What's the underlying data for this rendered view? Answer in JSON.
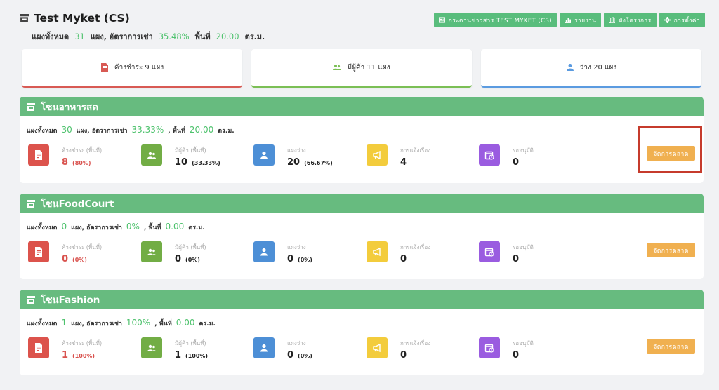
{
  "header": {
    "title": "Test Myket (CS)",
    "stats": {
      "total_label": "แผงทั้งหมด",
      "total_value": "31",
      "rate_label": "แผง, อัตราการเช่า",
      "rate_value": "35.48%",
      "area_label": "พื้นที่",
      "area_value": "20.00",
      "unit": "ตร.ม."
    },
    "buttons": [
      {
        "label": "กระดานข่าวสาร TEST MYKET (CS)",
        "icon": "newspaper-icon"
      },
      {
        "label": "รายงาน",
        "icon": "bar-chart-icon"
      },
      {
        "label": "ผังโครงการ",
        "icon": "map-icon"
      },
      {
        "label": "การตั้งค่า",
        "icon": "gear-icon"
      }
    ]
  },
  "summary_cards": [
    {
      "label": "ค้างชำระ 9 แผง",
      "icon": "invoice-icon",
      "color": "#d85a54"
    },
    {
      "label": "มีผู้ค้า 11 แผง",
      "icon": "users-icon",
      "color": "#7bbf55"
    },
    {
      "label": "ว่าง 20 แผง",
      "icon": "user-icon",
      "color": "#5b9be0"
    }
  ],
  "metric_labels": {
    "overdue": "ค้างชำระ (พื้นที่)",
    "tenants": "มีผู้ค้า (พื้นที่)",
    "vacant": "แผงว่าง",
    "reports": "การแจ้งเรื่อง",
    "pending": "รออนุมัติ"
  },
  "manage_label": "จัดการตลาด",
  "zones": [
    {
      "name": "โซนอาหารสด",
      "total_label": "แผงทั้งหมด",
      "total": "30",
      "rate_label": "แผง, อัตราการเช่า",
      "rate": "33.33%",
      "area_label": ", พื้นที่",
      "area": "20.00",
      "unit": "ตร.ม.",
      "overdue": "8",
      "overdue_pct": "(80%)",
      "tenants": "10",
      "tenants_pct": "(33.33%)",
      "vacant": "20",
      "vacant_pct": "(66.67%)",
      "reports": "4",
      "pending": "0"
    },
    {
      "name": "โซนFoodCourt",
      "total_label": "แผงทั้งหมด",
      "total": "0",
      "rate_label": "แผง, อัตราการเช่า",
      "rate": "0%",
      "area_label": ", พื้นที่",
      "area": "0.00",
      "unit": "ตร.ม.",
      "overdue": "0",
      "overdue_pct": "(0%)",
      "tenants": "0",
      "tenants_pct": "(0%)",
      "vacant": "0",
      "vacant_pct": "(0%)",
      "reports": "0",
      "pending": "0"
    },
    {
      "name": "โซนFashion",
      "total_label": "แผงทั้งหมด",
      "total": "1",
      "rate_label": "แผง, อัตราการเช่า",
      "rate": "100%",
      "area_label": ", พื้นที่",
      "area": "0.00",
      "unit": "ตร.ม.",
      "overdue": "1",
      "overdue_pct": "(100%)",
      "tenants": "1",
      "tenants_pct": "(100%)",
      "vacant": "0",
      "vacant_pct": "(0%)",
      "reports": "0",
      "pending": "0"
    }
  ],
  "colors": {
    "green": "#67bb7f",
    "red": "#dc534c",
    "olive": "#72ad45",
    "blue": "#4d8fd6",
    "yellow": "#f3cc3c",
    "purple": "#9a5ce0",
    "orange": "#f0b050"
  }
}
